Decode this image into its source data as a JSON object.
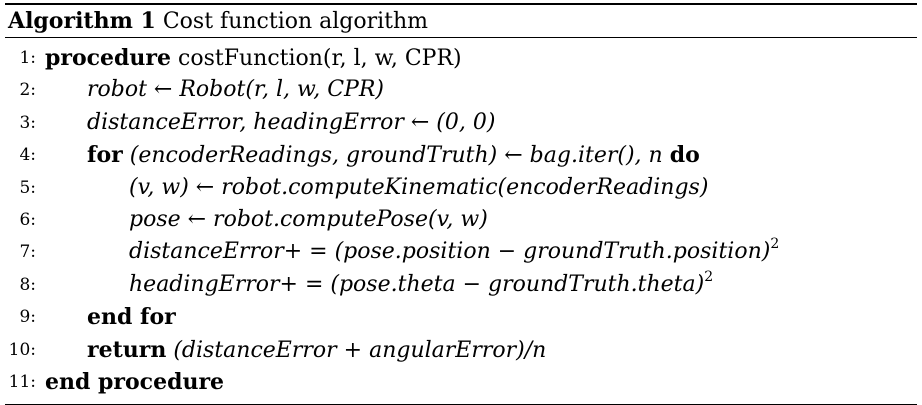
{
  "algorithm": {
    "caption_label": "Algorithm 1",
    "caption_title": "Cost function algorithm",
    "lines": [
      {
        "number": "1:",
        "kw": "procedure",
        "text": "costFunction(r, l, w, CPR)"
      },
      {
        "number": "2:",
        "text": "robot ← Robot(r, l, w, CPR)"
      },
      {
        "number": "3:",
        "text": "distanceError, headingError ← (0, 0)"
      },
      {
        "number": "4:",
        "kw": "for",
        "text": "(encoderReadings, groundTruth) ← bag.iter(), n",
        "kw_end": "do"
      },
      {
        "number": "5:",
        "text": "(v, w) ← robot.computeKinematic(encoderReadings)"
      },
      {
        "number": "6:",
        "text": "pose ← robot.computePose(v, w)"
      },
      {
        "number": "7:",
        "text": "distanceError+ = (pose.position − groundTruth.position)",
        "sup": "2"
      },
      {
        "number": "8:",
        "text": "headingError+ = (pose.theta − groundTruth.theta)",
        "sup": "2"
      },
      {
        "number": "9:",
        "kw": "end for"
      },
      {
        "number": "10:",
        "kw": "return",
        "text": "(distanceError + angularError)/n"
      },
      {
        "number": "11:",
        "kw": "end procedure"
      }
    ]
  }
}
